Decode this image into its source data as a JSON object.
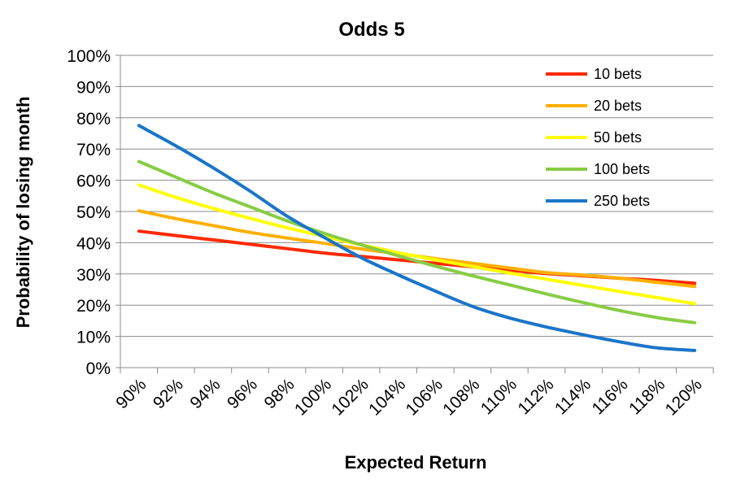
{
  "chart_data": {
    "type": "line",
    "title": "Odds 5",
    "xlabel": "Expected Return",
    "ylabel": "Probability of losing month",
    "x_tick_labels": [
      "90%",
      "92%",
      "94%",
      "96%",
      "98%",
      "100%",
      "102%",
      "104%",
      "106%",
      "108%",
      "110%",
      "112%",
      "114%",
      "116%",
      "118%",
      "120%"
    ],
    "y_tick_labels": [
      "0%",
      "10%",
      "20%",
      "30%",
      "40%",
      "50%",
      "60%",
      "70%",
      "80%",
      "90%",
      "100%"
    ],
    "xlim": [
      90,
      120
    ],
    "ylim": [
      0,
      100
    ],
    "grid": "horizontal",
    "legend_position": "top-right",
    "x": [
      91,
      93,
      95,
      97,
      99,
      101,
      103,
      105,
      107,
      109,
      111,
      113,
      115,
      117,
      119,
      121
    ],
    "series": [
      {
        "name": "10 bets",
        "color": "#ff2a00",
        "values": [
          43.7,
          42.3,
          40.9,
          39.5,
          38.1,
          36.7,
          35.6,
          34.5,
          33.4,
          32.3,
          31.2,
          30.1,
          29.4,
          28.6,
          27.9,
          27.0
        ]
      },
      {
        "name": "20 bets",
        "color": "#ffb000",
        "values": [
          50.2,
          47.7,
          45.5,
          43.3,
          41.5,
          39.8,
          38.0,
          36.5,
          34.9,
          33.4,
          31.9,
          30.4,
          29.6,
          28.6,
          27.3,
          26.0
        ]
      },
      {
        "name": "50 bets",
        "color": "#ffff00",
        "values": [
          58.5,
          54.5,
          51.0,
          47.8,
          44.8,
          42.0,
          39.3,
          36.8,
          34.5,
          32.4,
          30.3,
          28.3,
          26.3,
          24.3,
          22.4,
          20.5
        ]
      },
      {
        "name": "100 bets",
        "color": "#88cc44",
        "values": [
          66.0,
          61.0,
          56.0,
          51.5,
          47.0,
          43.0,
          39.3,
          35.8,
          32.5,
          29.4,
          26.5,
          23.6,
          20.8,
          18.2,
          16.0,
          14.4
        ]
      },
      {
        "name": "250 bets",
        "color": "#1a75c8",
        "values": [
          77.5,
          71.0,
          64.0,
          56.5,
          48.5,
          41.7,
          35.2,
          29.7,
          24.5,
          19.6,
          15.9,
          13.0,
          10.5,
          8.2,
          6.3,
          5.5
        ]
      }
    ]
  }
}
